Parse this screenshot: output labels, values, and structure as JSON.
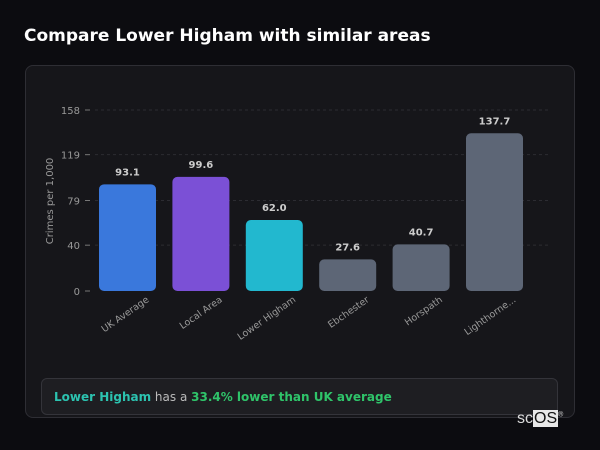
{
  "title": "Compare Lower Higham with similar areas",
  "chart_data": {
    "type": "bar",
    "ylabel": "Crimes per 1,000",
    "xlabel": "",
    "ylim": [
      0,
      158
    ],
    "yticks": [
      0,
      40,
      79,
      119,
      158
    ],
    "grid": true,
    "categories": [
      "UK Average",
      "Local Area",
      "Lower Higham",
      "Ebchester",
      "Horspath",
      "Lighthorne..."
    ],
    "values": [
      93.1,
      99.6,
      62.0,
      27.6,
      40.7,
      137.7
    ],
    "value_labels": [
      "93.1",
      "99.6",
      "62.0",
      "27.6",
      "40.7",
      "137.7"
    ],
    "colors": [
      "#3a78dc",
      "#7b50d6",
      "#22b8cf",
      "#5d6676",
      "#5d6676",
      "#5d6676"
    ]
  },
  "summary": {
    "area": "Lower Higham",
    "mid": " has a ",
    "stat": "33.4% lower than UK average"
  },
  "logo": {
    "a": "sc",
    "b": "OS",
    "sup": "®"
  }
}
